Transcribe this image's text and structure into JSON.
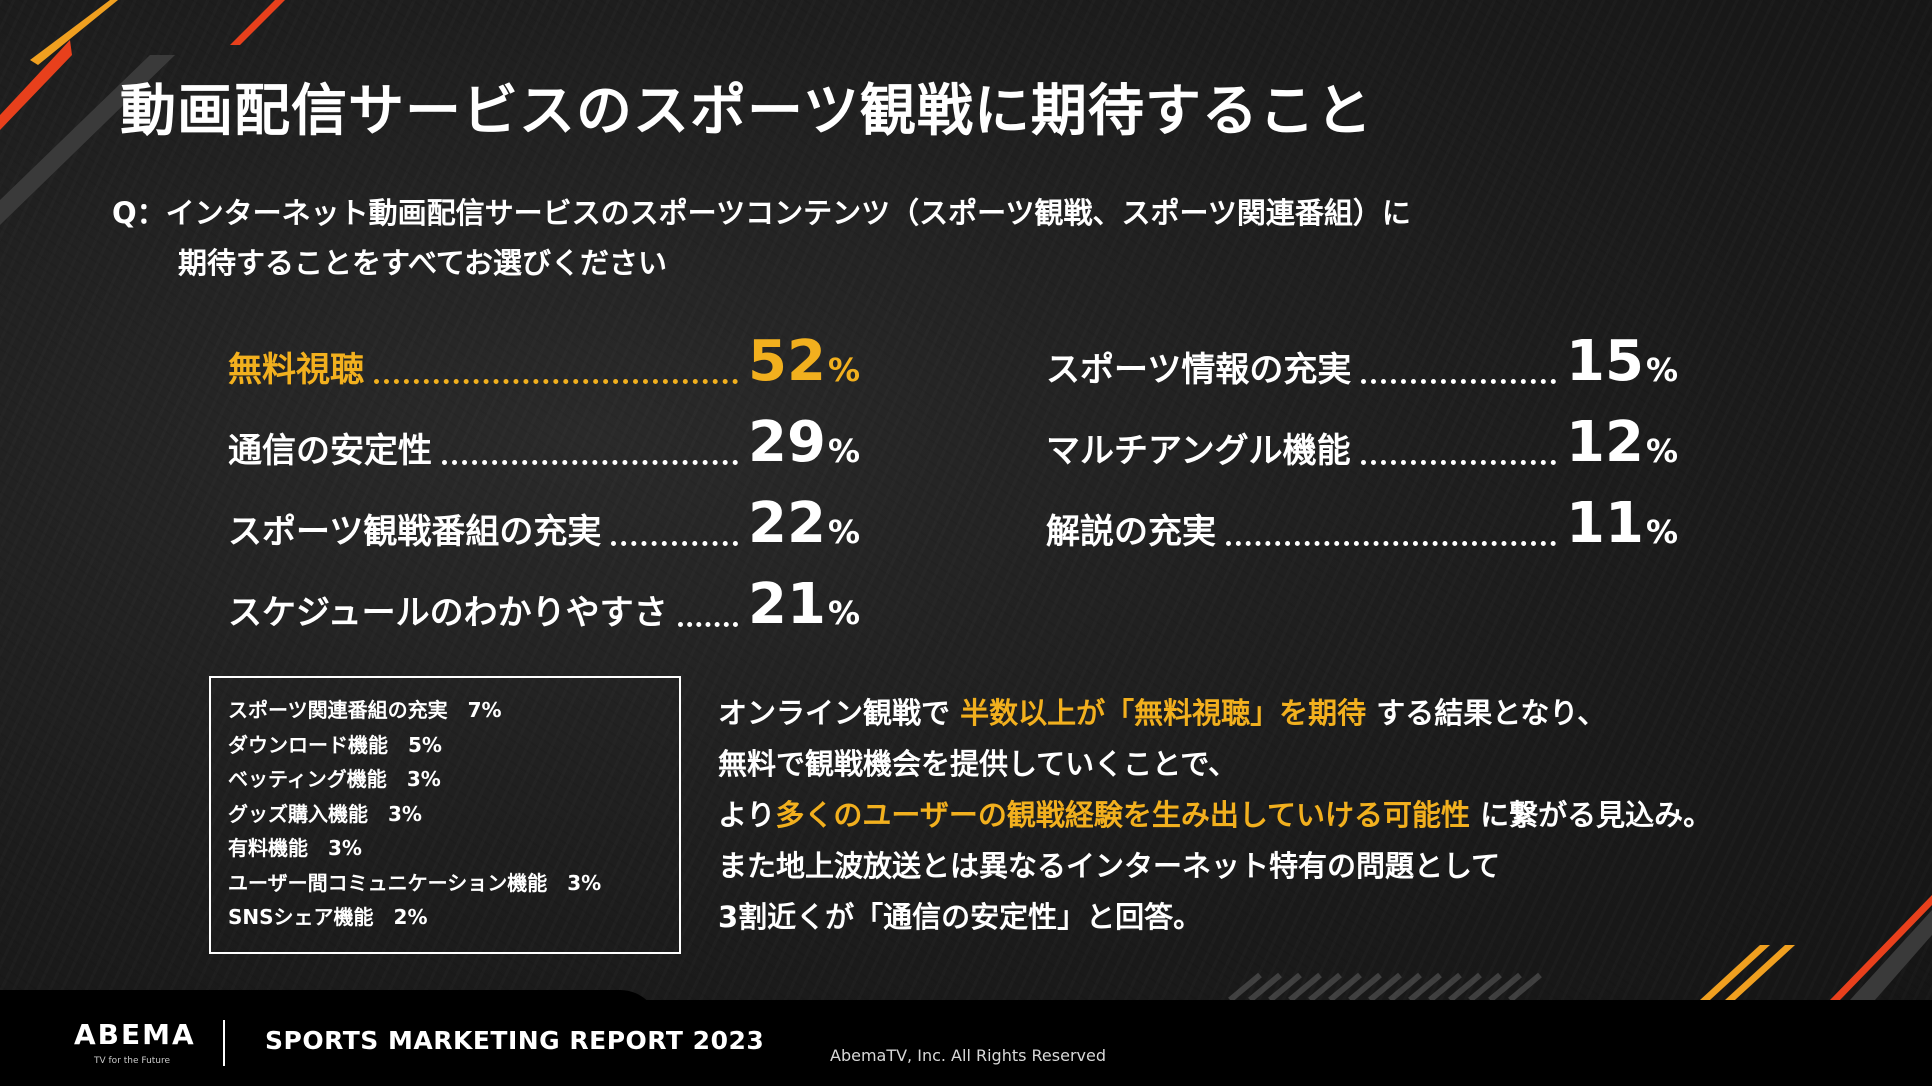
{
  "slide": {
    "title": "動画配信サービスのスポーツ観戦に期待すること",
    "question_line1": "Q：インターネット動画配信サービスのスポーツコンテンツ（スポーツ観戦、スポーツ関連番組）に",
    "question_line2": "期待することをすべてお選びください"
  },
  "results_left": [
    {
      "label": "無料視聴",
      "value": "52",
      "unit": "%",
      "highlight": true
    },
    {
      "label": "通信の安定性",
      "value": "29",
      "unit": "%"
    },
    {
      "label": "スポーツ観戦番組の充実",
      "value": "22",
      "unit": "%"
    },
    {
      "label": "スケジュールのわかりやすさ",
      "value": "21",
      "unit": "%"
    }
  ],
  "results_right": [
    {
      "label": "スポーツ情報の充実",
      "value": "15",
      "unit": "%"
    },
    {
      "label": "マルチアングル機能",
      "value": "12",
      "unit": "%"
    },
    {
      "label": "解説の充実",
      "value": "11",
      "unit": "%"
    }
  ],
  "others": [
    {
      "label": "スポーツ関連番組の充実",
      "value": "7%"
    },
    {
      "label": "ダウンロード機能",
      "value": "5%"
    },
    {
      "label": "ベッティング機能",
      "value": "3%"
    },
    {
      "label": "グッズ購入機能",
      "value": "3%"
    },
    {
      "label": "有料機能",
      "value": "3%"
    },
    {
      "label": "ユーザー間コミュニケーション機能",
      "value": "3%"
    },
    {
      "label": "SNSシェア機能",
      "value": "2%"
    }
  ],
  "summary": {
    "l1_a": "オンライン観戦で",
    "l1_hl": "半数以上が「無料視聴」を期待",
    "l1_b": "する結果となり、",
    "l2": "無料で観戦機会を提供していくことで、",
    "l3_a": "より",
    "l3_hl": "多くのユーザーの観戦経験を生み出していける可能性",
    "l3_b": "に繋がる見込み。",
    "l4": "また地上波放送とは異なるインターネット特有の問題として",
    "l5": "3割近くが「通信の安定性」と回答。"
  },
  "footer": {
    "logo": "ABEMA",
    "logo_tagline": "TV for the Future",
    "report": "SPORTS MARKETING REPORT 2023",
    "copyright": "AbemaTV, Inc. All Rights Reserved"
  },
  "colors": {
    "accent": "#f2b01e",
    "stripe_red": "#e8401c",
    "stripe_orange": "#f0a020",
    "background": "#1b1b1b",
    "text": "#ffffff"
  }
}
